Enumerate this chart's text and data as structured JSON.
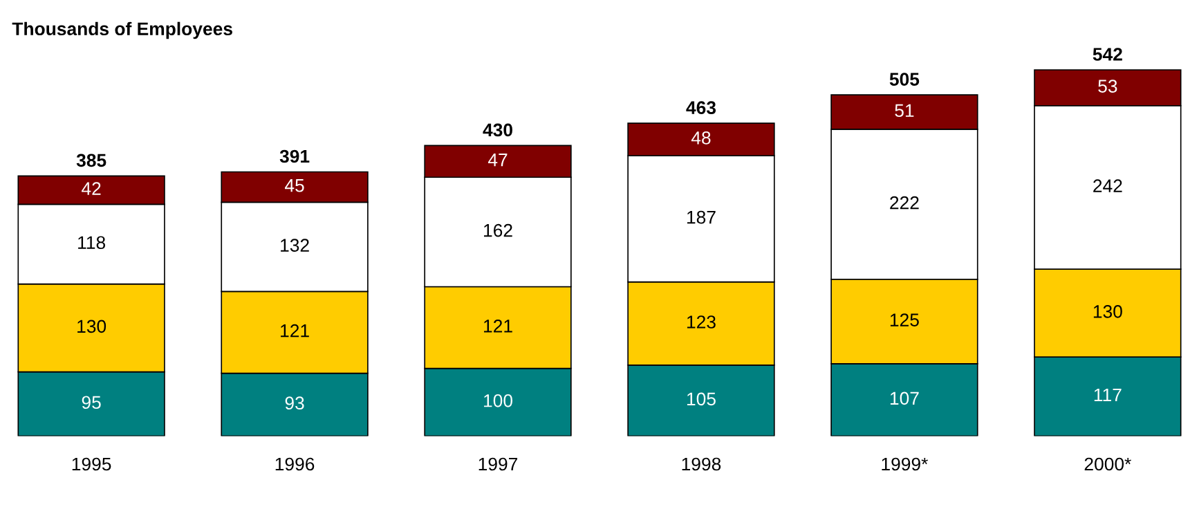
{
  "chart_data": {
    "type": "bar",
    "title": "Thousands of Employees",
    "stacked": true,
    "data_labels": true,
    "grid": false,
    "legend": false,
    "categories": [
      "1995",
      "1996",
      "1997",
      "1998",
      "1999*",
      "2000*"
    ],
    "series": [
      {
        "color": "#008080",
        "values": [
          95,
          93,
          100,
          105,
          107,
          117
        ]
      },
      {
        "color": "#ffcc00",
        "values": [
          130,
          121,
          121,
          123,
          125,
          130
        ]
      },
      {
        "color": "#ffffff",
        "values": [
          118,
          132,
          162,
          187,
          222,
          242
        ]
      },
      {
        "color": "#800000",
        "values": [
          42,
          45,
          47,
          48,
          51,
          53
        ]
      }
    ],
    "totals": [
      "385",
      "391",
      "430",
      "463",
      "505",
      "542"
    ]
  }
}
